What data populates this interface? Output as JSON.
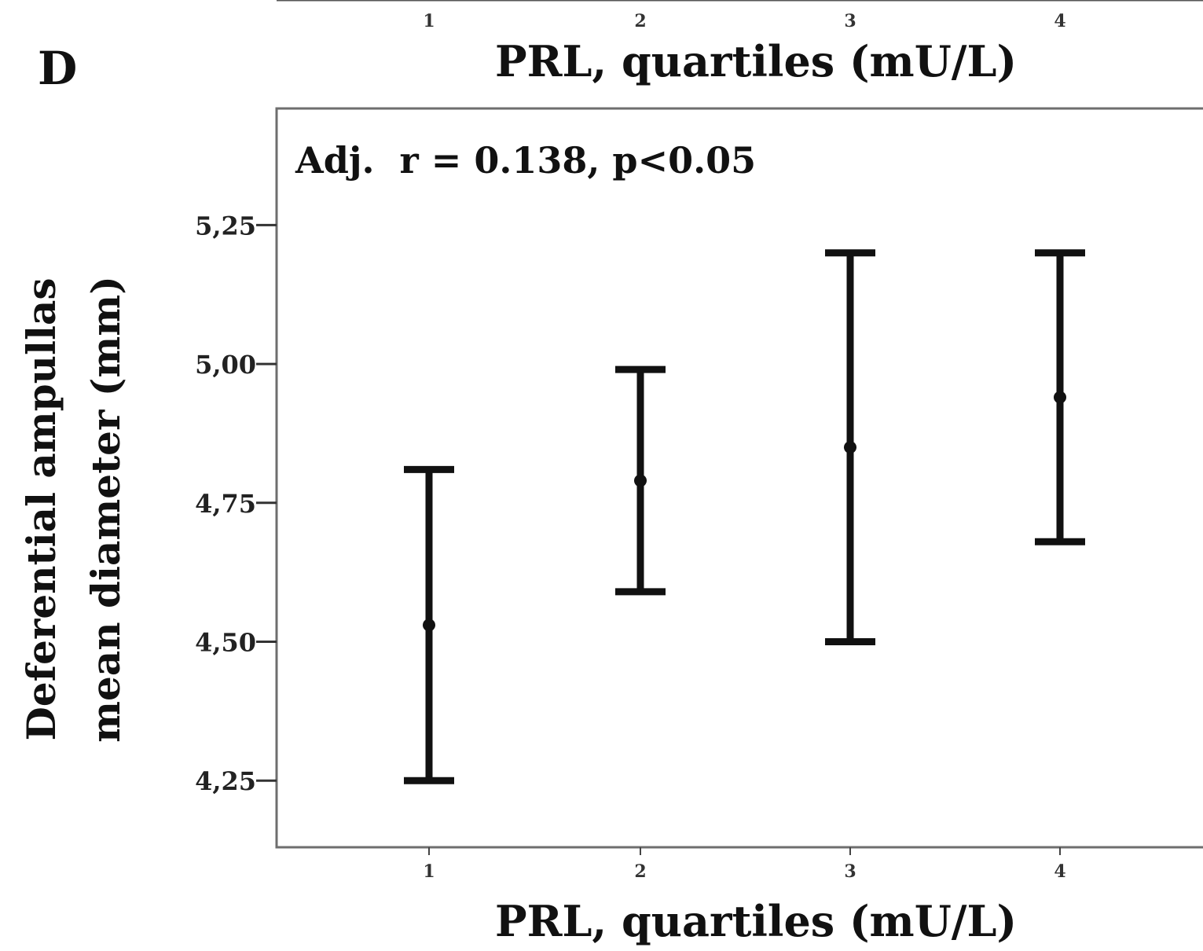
{
  "panel_label": "D",
  "top_strip": {
    "tick_labels": [
      "1",
      "2",
      "3",
      "4"
    ],
    "xlabel": "PRL, quartiles (mU/L)"
  },
  "chart_data": {
    "type": "errorbar",
    "title": "",
    "annotation": "Adj.  r = 0.138, p<0.05",
    "xlabel": "PRL, quartiles (mU/L)",
    "ylabel_lines": [
      "Deferential ampullas",
      "mean diameter (mm)"
    ],
    "categories": [
      "1",
      "2",
      "3",
      "4"
    ],
    "series": [
      {
        "means": [
          4.53,
          4.79,
          4.85,
          4.94
        ],
        "lower": [
          4.25,
          4.59,
          4.5,
          4.68
        ],
        "upper": [
          4.81,
          4.99,
          5.2,
          5.2
        ]
      }
    ],
    "yticks": [
      4.25,
      4.5,
      4.75,
      5.0,
      5.25
    ],
    "ytick_labels": [
      "4,25",
      "4,50",
      "4,75",
      "5,00",
      "5,25"
    ],
    "ylim": [
      4.13,
      5.46
    ],
    "grid": false,
    "color": "#111111"
  }
}
